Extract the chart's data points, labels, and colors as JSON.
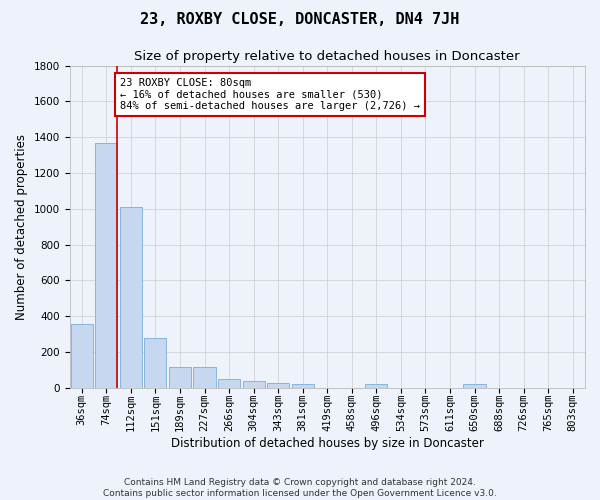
{
  "title": "23, ROXBY CLOSE, DONCASTER, DN4 7JH",
  "subtitle": "Size of property relative to detached houses in Doncaster",
  "xlabel": "Distribution of detached houses by size in Doncaster",
  "ylabel": "Number of detached properties",
  "footer_line1": "Contains HM Land Registry data © Crown copyright and database right 2024.",
  "footer_line2": "Contains public sector information licensed under the Open Government Licence v3.0.",
  "categories": [
    "36sqm",
    "74sqm",
    "112sqm",
    "151sqm",
    "189sqm",
    "227sqm",
    "266sqm",
    "304sqm",
    "343sqm",
    "381sqm",
    "419sqm",
    "458sqm",
    "496sqm",
    "534sqm",
    "573sqm",
    "611sqm",
    "650sqm",
    "688sqm",
    "726sqm",
    "765sqm",
    "803sqm"
  ],
  "values": [
    355,
    1370,
    1010,
    280,
    115,
    115,
    48,
    35,
    28,
    18,
    0,
    0,
    18,
    0,
    0,
    0,
    18,
    0,
    0,
    0,
    0
  ],
  "bar_color": "#c5d8f0",
  "bar_edge_color": "#7aaed6",
  "vline_color": "#cc0000",
  "annotation_text_line1": "23 ROXBY CLOSE: 80sqm",
  "annotation_text_line2": "← 16% of detached houses are smaller (530)",
  "annotation_text_line3": "84% of semi-detached houses are larger (2,726) →",
  "annotation_box_facecolor": "#ffffff",
  "annotation_box_edgecolor": "#cc0000",
  "ylim": [
    0,
    1800
  ],
  "yticks": [
    0,
    200,
    400,
    600,
    800,
    1000,
    1200,
    1400,
    1600,
    1800
  ],
  "grid_color": "#cccccc",
  "background_color": "#eef2fb",
  "title_fontsize": 11,
  "subtitle_fontsize": 9.5,
  "axis_label_fontsize": 8.5,
  "tick_fontsize": 7.5,
  "annotation_fontsize": 7.5,
  "footer_fontsize": 6.5
}
